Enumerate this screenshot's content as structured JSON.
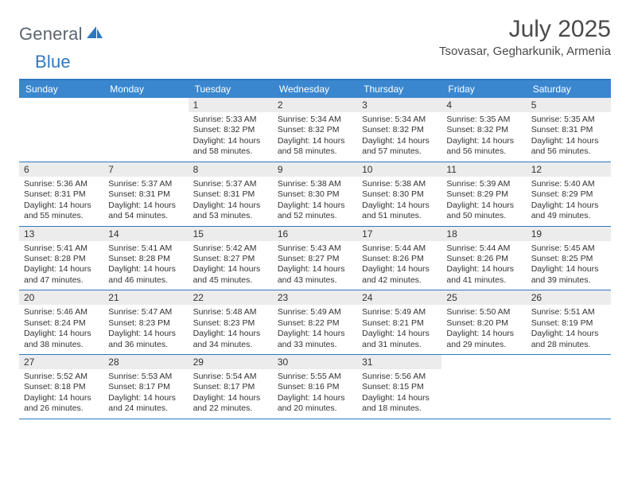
{
  "logo": {
    "word1": "General",
    "word2": "Blue"
  },
  "title": "July 2025",
  "location": "Tsovasar, Gegharkunik, Armenia",
  "colors": {
    "headerBar": "#3a87cf",
    "borderBlue": "#2f78c2",
    "dayStrip": "#ececec",
    "text": "#333333",
    "logoGray": "#5c6670",
    "logoBlue": "#2f78c2",
    "background": "#ffffff"
  },
  "dow": [
    "Sunday",
    "Monday",
    "Tuesday",
    "Wednesday",
    "Thursday",
    "Friday",
    "Saturday"
  ],
  "weeks": [
    [
      null,
      null,
      {
        "n": "1",
        "sr": "5:33 AM",
        "ss": "8:32 PM",
        "dl": "14 hours and 58 minutes."
      },
      {
        "n": "2",
        "sr": "5:34 AM",
        "ss": "8:32 PM",
        "dl": "14 hours and 58 minutes."
      },
      {
        "n": "3",
        "sr": "5:34 AM",
        "ss": "8:32 PM",
        "dl": "14 hours and 57 minutes."
      },
      {
        "n": "4",
        "sr": "5:35 AM",
        "ss": "8:32 PM",
        "dl": "14 hours and 56 minutes."
      },
      {
        "n": "5",
        "sr": "5:35 AM",
        "ss": "8:31 PM",
        "dl": "14 hours and 56 minutes."
      }
    ],
    [
      {
        "n": "6",
        "sr": "5:36 AM",
        "ss": "8:31 PM",
        "dl": "14 hours and 55 minutes."
      },
      {
        "n": "7",
        "sr": "5:37 AM",
        "ss": "8:31 PM",
        "dl": "14 hours and 54 minutes."
      },
      {
        "n": "8",
        "sr": "5:37 AM",
        "ss": "8:31 PM",
        "dl": "14 hours and 53 minutes."
      },
      {
        "n": "9",
        "sr": "5:38 AM",
        "ss": "8:30 PM",
        "dl": "14 hours and 52 minutes."
      },
      {
        "n": "10",
        "sr": "5:38 AM",
        "ss": "8:30 PM",
        "dl": "14 hours and 51 minutes."
      },
      {
        "n": "11",
        "sr": "5:39 AM",
        "ss": "8:29 PM",
        "dl": "14 hours and 50 minutes."
      },
      {
        "n": "12",
        "sr": "5:40 AM",
        "ss": "8:29 PM",
        "dl": "14 hours and 49 minutes."
      }
    ],
    [
      {
        "n": "13",
        "sr": "5:41 AM",
        "ss": "8:28 PM",
        "dl": "14 hours and 47 minutes."
      },
      {
        "n": "14",
        "sr": "5:41 AM",
        "ss": "8:28 PM",
        "dl": "14 hours and 46 minutes."
      },
      {
        "n": "15",
        "sr": "5:42 AM",
        "ss": "8:27 PM",
        "dl": "14 hours and 45 minutes."
      },
      {
        "n": "16",
        "sr": "5:43 AM",
        "ss": "8:27 PM",
        "dl": "14 hours and 43 minutes."
      },
      {
        "n": "17",
        "sr": "5:44 AM",
        "ss": "8:26 PM",
        "dl": "14 hours and 42 minutes."
      },
      {
        "n": "18",
        "sr": "5:44 AM",
        "ss": "8:26 PM",
        "dl": "14 hours and 41 minutes."
      },
      {
        "n": "19",
        "sr": "5:45 AM",
        "ss": "8:25 PM",
        "dl": "14 hours and 39 minutes."
      }
    ],
    [
      {
        "n": "20",
        "sr": "5:46 AM",
        "ss": "8:24 PM",
        "dl": "14 hours and 38 minutes."
      },
      {
        "n": "21",
        "sr": "5:47 AM",
        "ss": "8:23 PM",
        "dl": "14 hours and 36 minutes."
      },
      {
        "n": "22",
        "sr": "5:48 AM",
        "ss": "8:23 PM",
        "dl": "14 hours and 34 minutes."
      },
      {
        "n": "23",
        "sr": "5:49 AM",
        "ss": "8:22 PM",
        "dl": "14 hours and 33 minutes."
      },
      {
        "n": "24",
        "sr": "5:49 AM",
        "ss": "8:21 PM",
        "dl": "14 hours and 31 minutes."
      },
      {
        "n": "25",
        "sr": "5:50 AM",
        "ss": "8:20 PM",
        "dl": "14 hours and 29 minutes."
      },
      {
        "n": "26",
        "sr": "5:51 AM",
        "ss": "8:19 PM",
        "dl": "14 hours and 28 minutes."
      }
    ],
    [
      {
        "n": "27",
        "sr": "5:52 AM",
        "ss": "8:18 PM",
        "dl": "14 hours and 26 minutes."
      },
      {
        "n": "28",
        "sr": "5:53 AM",
        "ss": "8:17 PM",
        "dl": "14 hours and 24 minutes."
      },
      {
        "n": "29",
        "sr": "5:54 AM",
        "ss": "8:17 PM",
        "dl": "14 hours and 22 minutes."
      },
      {
        "n": "30",
        "sr": "5:55 AM",
        "ss": "8:16 PM",
        "dl": "14 hours and 20 minutes."
      },
      {
        "n": "31",
        "sr": "5:56 AM",
        "ss": "8:15 PM",
        "dl": "14 hours and 18 minutes."
      },
      null,
      null
    ]
  ],
  "labels": {
    "sunrise": "Sunrise:",
    "sunset": "Sunset:",
    "daylight": "Daylight:"
  }
}
